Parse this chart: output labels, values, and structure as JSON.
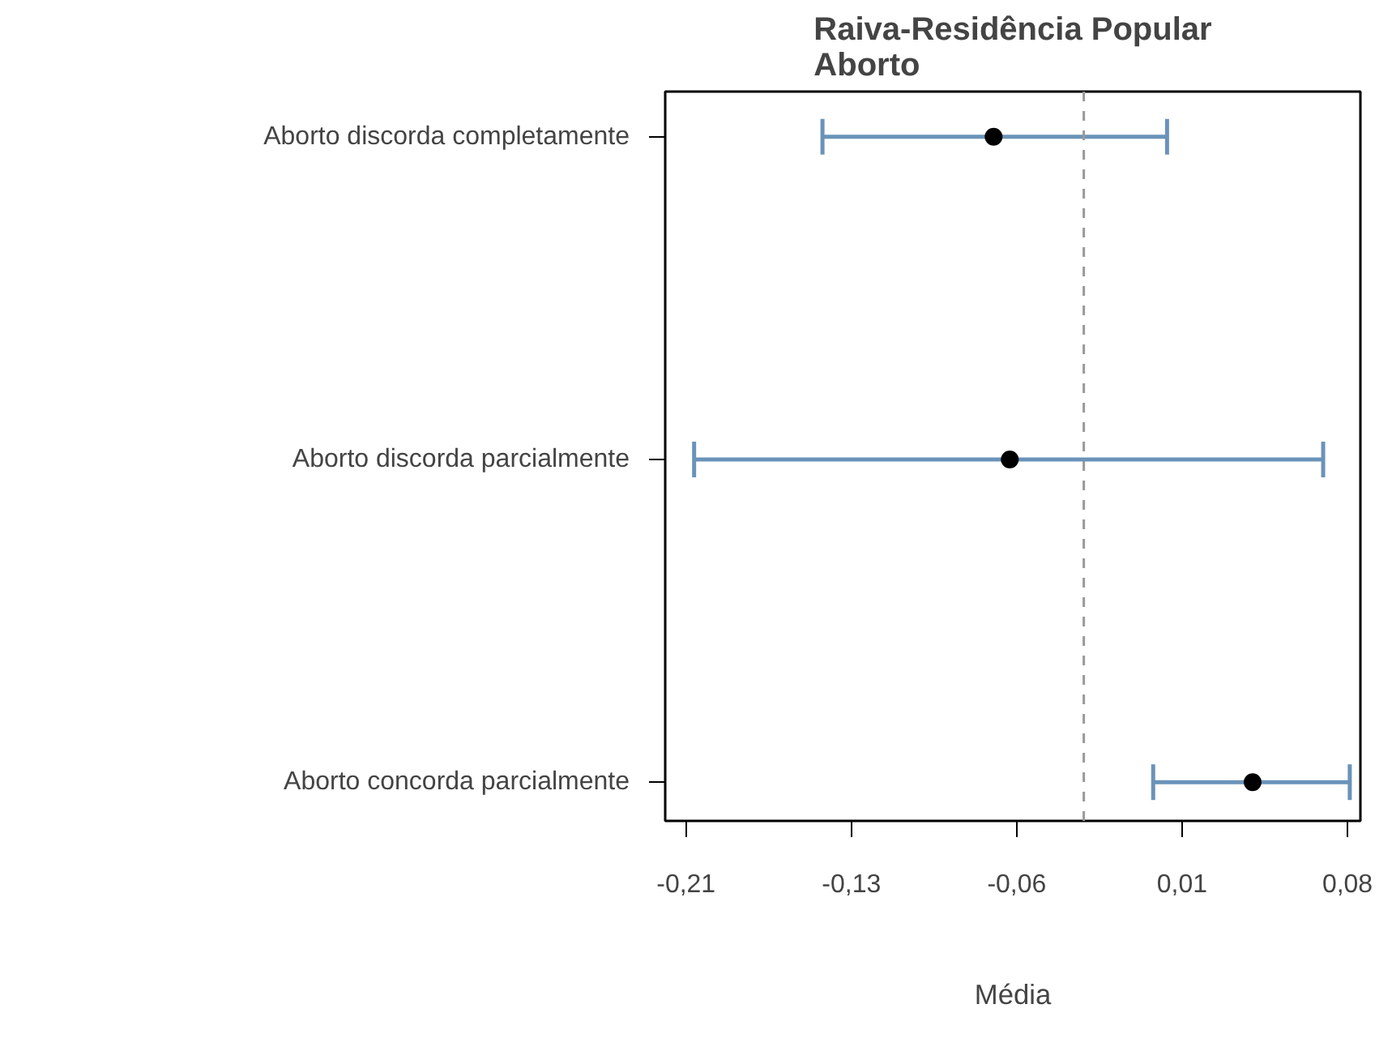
{
  "chart_data": {
    "type": "scatter",
    "orientation": "horizontal",
    "title": "Raiva-Residência Popular\nAborto",
    "xlabel": "Média",
    "categories": [
      "Aborto discorda completamente",
      "Aborto discorda parcialmente",
      "Aborto concorda parcialmente"
    ],
    "series": [
      {
        "color": "#000000",
        "values": [
          -0.073,
          -0.066,
          0.039
        ],
        "errors": [
          [
            -0.147,
            0.002
          ],
          [
            -0.2025,
            0.0695
          ],
          [
            -0.004,
            0.081
          ]
        ]
      }
    ],
    "xlim": [
      -0.215,
      0.0856
    ],
    "xticks": [
      {
        "value": -0.206,
        "label": "-0,21"
      },
      {
        "value": -0.1345,
        "label": "-0,13"
      },
      {
        "value": -0.063,
        "label": "-0,06"
      },
      {
        "value": 0.0085,
        "label": "0,01"
      },
      {
        "value": 0.08,
        "label": "0,08"
      }
    ],
    "ref_lines": [
      {
        "axis": "x",
        "value": -0.034,
        "color": "#999999",
        "line_style": "dashed"
      }
    ],
    "grid": false,
    "marker": "circle"
  }
}
